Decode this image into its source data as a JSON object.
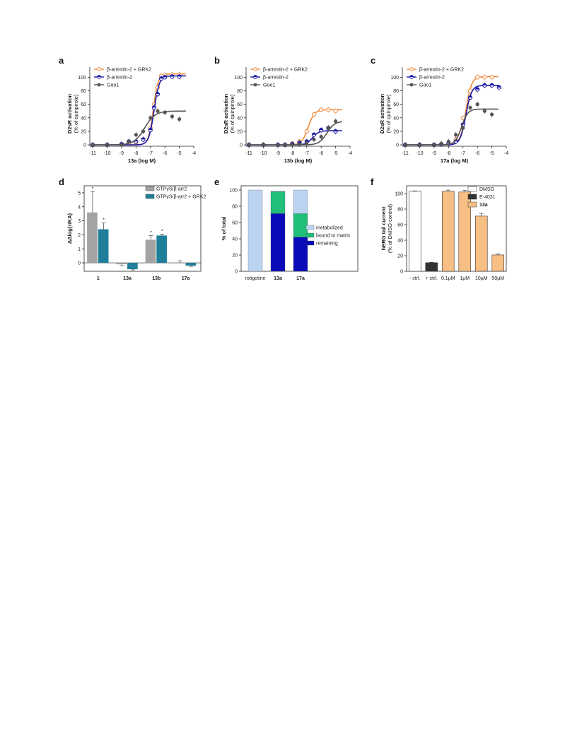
{
  "chart_data": [
    {
      "panel": "a",
      "type": "line",
      "xlabel": "13a (log M)",
      "ylabel": "D2sR activation",
      "ylabel2": "(% of quinpirole)",
      "xticks": [
        -11,
        -10,
        -9,
        -8,
        -7,
        -6,
        -5,
        -4
      ],
      "yticks": [
        0,
        20,
        40,
        60,
        80,
        100
      ],
      "xlim": [
        -11.2,
        -4
      ],
      "ylim": [
        -2,
        115
      ],
      "series": [
        {
          "name": "β-arrestin-2 + GRK2",
          "color": "#f08a3c",
          "marker": "open-circle",
          "x": [
            -11,
            -10,
            -9,
            -8.5,
            -8,
            -7.5,
            -7,
            -6.75,
            -6.5,
            -6.25,
            -6,
            -5.5,
            -5
          ],
          "y": [
            0,
            0,
            1,
            2,
            4,
            8,
            25,
            60,
            85,
            102,
            103,
            104,
            104
          ],
          "fit": {
            "bottom": 0,
            "top": 105,
            "logec50": -6.8,
            "hill": 2.6
          }
        },
        {
          "name": "β-arrestin-2",
          "color": "#1a1aa8",
          "marker": "half-circle",
          "x": [
            -11,
            -10,
            -9,
            -8.5,
            -8,
            -7.5,
            -7,
            -6.75,
            -6.5,
            -6.25,
            -6,
            -5.5,
            -5
          ],
          "y": [
            0,
            0,
            1,
            5,
            5,
            8,
            22,
            55,
            75,
            98,
            100,
            101,
            101
          ],
          "fit": {
            "bottom": 0,
            "top": 102,
            "logec50": -6.75,
            "hill": 2.4
          }
        },
        {
          "name": "Gαo1",
          "color": "#555555",
          "marker": "filled-circle",
          "x": [
            -11,
            -10,
            -9,
            -8.5,
            -8,
            -7.5,
            -7,
            -6.5,
            -6,
            -5.5,
            -5
          ],
          "y": [
            0,
            0,
            0,
            5,
            15,
            20,
            40,
            50,
            48,
            42,
            38
          ],
          "fit": {
            "bottom": 0,
            "top": 50,
            "logec50": -7.4,
            "hill": 1.2
          }
        }
      ],
      "legend_position": "top-left"
    },
    {
      "panel": "b",
      "type": "line",
      "xlabel": "13b (log M)",
      "ylabel": "D2sR activation",
      "ylabel2": "(% of quinpirole)",
      "xticks": [
        -11,
        -10,
        -9,
        -8,
        -7,
        -6,
        -5,
        -4
      ],
      "yticks": [
        0,
        20,
        40,
        60,
        80,
        100
      ],
      "xlim": [
        -11.2,
        -4
      ],
      "ylim": [
        -2,
        115
      ],
      "series": [
        {
          "name": "β-arrestin-2 + GRK2",
          "color": "#f08a3c",
          "marker": "open-circle",
          "x": [
            -11,
            -10,
            -9,
            -8.5,
            -8,
            -7.5,
            -7,
            -6.5,
            -6,
            -5.5,
            -5
          ],
          "y": [
            0,
            0,
            0,
            0,
            2,
            5,
            20,
            45,
            52,
            52,
            50
          ],
          "fit": {
            "bottom": 0,
            "top": 52,
            "logec50": -6.9,
            "hill": 2.0
          }
        },
        {
          "name": "β-arrestin-2",
          "color": "#1a1aa8",
          "marker": "half-circle",
          "x": [
            -11,
            -10,
            -9,
            -8.5,
            -8,
            -7.5,
            -7,
            -6.5,
            -6,
            -5.5,
            -5
          ],
          "y": [
            0,
            0,
            0,
            0,
            1,
            3,
            5,
            15,
            22,
            25,
            20
          ],
          "fit": {
            "bottom": 0,
            "top": 21,
            "logec50": -6.6,
            "hill": 2.0
          }
        },
        {
          "name": "Gαo1",
          "color": "#555555",
          "marker": "filled-circle",
          "x": [
            -11,
            -10,
            -9,
            -8.5,
            -8,
            -7.5,
            -7,
            -6.5,
            -6,
            -5.5,
            -5
          ],
          "y": [
            0,
            0,
            0,
            0,
            0,
            1,
            3,
            8,
            12,
            25,
            35
          ],
          "fit": {
            "bottom": 0,
            "top": 35,
            "logec50": -5.6,
            "hill": 1.6
          }
        }
      ],
      "legend_position": "top-left"
    },
    {
      "panel": "c",
      "type": "line",
      "xlabel": "17a (log M)",
      "ylabel": "D2sR activation",
      "ylabel2": "(% of quinpirole)",
      "xticks": [
        -11,
        -10,
        -9,
        -8,
        -7,
        -6,
        -5,
        -4
      ],
      "yticks": [
        0,
        20,
        40,
        60,
        80,
        100
      ],
      "xlim": [
        -11.2,
        -4
      ],
      "ylim": [
        -2,
        115
      ],
      "series": [
        {
          "name": "β-arrestin-2 + GRK2",
          "color": "#f08a3c",
          "marker": "open-circle",
          "x": [
            -11,
            -10,
            -9,
            -8.5,
            -8,
            -7.5,
            -7,
            -6.5,
            -6,
            -5.5,
            -5
          ],
          "y": [
            0,
            0,
            0,
            1,
            2,
            8,
            40,
            80,
            100,
            100,
            100
          ],
          "fit": {
            "bottom": 0,
            "top": 101,
            "logec50": -6.8,
            "hill": 2.2
          }
        },
        {
          "name": "β-arrestin-2",
          "color": "#1a1aa8",
          "marker": "half-circle",
          "x": [
            -11,
            -10,
            -9,
            -8.5,
            -8,
            -7.5,
            -7,
            -6.5,
            -6,
            -5.5,
            -5,
            -4.5
          ],
          "y": [
            0,
            0,
            0,
            1,
            2,
            5,
            30,
            70,
            82,
            88,
            88,
            85
          ],
          "fit": {
            "bottom": 0,
            "top": 88,
            "logec50": -6.8,
            "hill": 2.2
          }
        },
        {
          "name": "Gαo1",
          "color": "#555555",
          "marker": "filled-circle",
          "x": [
            -11,
            -10,
            -9,
            -8.5,
            -8,
            -7.5,
            -7,
            -6.5,
            -6,
            -5.5,
            -5
          ],
          "y": [
            0,
            0,
            0,
            2,
            5,
            15,
            25,
            55,
            60,
            50,
            45
          ],
          "fit": {
            "bottom": 0,
            "top": 53,
            "logec50": -7.1,
            "hill": 2.0
          }
        }
      ],
      "legend_position": "top-left"
    },
    {
      "panel": "d",
      "type": "bar",
      "ylabel": "ΔΔlog(τ/KA)",
      "categories": [
        "1",
        "13a",
        "13b",
        "17a"
      ],
      "yticks": [
        0,
        1,
        2,
        3,
        4,
        5
      ],
      "ylim": [
        -0.6,
        5.5
      ],
      "series": [
        {
          "name": "GTPγS/β-arr2",
          "color": "#a3a3a3",
          "values": [
            3.6,
            -0.1,
            1.65,
            0.0
          ],
          "errors": [
            1.5,
            0.1,
            0.3,
            0.15
          ]
        },
        {
          "name": "GTPγS/β-arr2 + GRK2",
          "color": "#1f7f9a",
          "values": [
            2.4,
            -0.45,
            1.95,
            -0.2
          ],
          "errors": [
            0.45,
            0.05,
            0.1,
            0.05
          ]
        }
      ],
      "annotations": [
        {
          "category": "1",
          "series": 0,
          "text": "*"
        },
        {
          "category": "1",
          "series": 1,
          "text": "*"
        },
        {
          "category": "13b",
          "series": 0,
          "text": "*"
        },
        {
          "category": "13b",
          "series": 1,
          "text": "*"
        }
      ],
      "legend_position": "top-right"
    },
    {
      "panel": "e",
      "type": "bar",
      "stacked": true,
      "ylabel": "% of total",
      "categories": [
        "rotigotine",
        "13a",
        "17a"
      ],
      "yticks": [
        0,
        20,
        40,
        60,
        80,
        100
      ],
      "ylim": [
        0,
        100
      ],
      "series": [
        {
          "name": "remaining",
          "color": "#0a0ab8",
          "values": [
            0,
            71,
            42
          ]
        },
        {
          "name": "bound to matrix",
          "color": "#1fbf7a",
          "values": [
            0,
            27,
            29
          ]
        },
        {
          "name": "metabolized",
          "color": "#bcd4f2",
          "values": [
            100,
            1,
            29
          ]
        }
      ],
      "legend_order": [
        "metabolized",
        "bound to matrix",
        "remaining"
      ],
      "legend_position": "right"
    },
    {
      "panel": "f",
      "type": "bar",
      "ylabel": "hERG tail current",
      "ylabel2": "(% of DMSO control)",
      "categories": [
        "- ctrl.",
        "+ ctrl.",
        "0.1µM",
        "1µM",
        "10µM",
        "50µM"
      ],
      "yticks": [
        0,
        20,
        40,
        60,
        80,
        100
      ],
      "ylim": [
        0,
        110
      ],
      "values": [
        103,
        11,
        103,
        102,
        71,
        21
      ],
      "errors": [
        0.5,
        0.5,
        1.5,
        2,
        3.5,
        1.5
      ],
      "colors": [
        "#ffffff",
        "#333333",
        "#f8bf85",
        "#f8bf85",
        "#f8bf85",
        "#f8bf85"
      ],
      "legend": [
        {
          "name": "DMSO",
          "color": "#ffffff"
        },
        {
          "name": "E-4031",
          "color": "#333333"
        },
        {
          "name": "13a",
          "color": "#f8bf85",
          "bold": true
        }
      ],
      "legend_position": "top-right"
    }
  ]
}
